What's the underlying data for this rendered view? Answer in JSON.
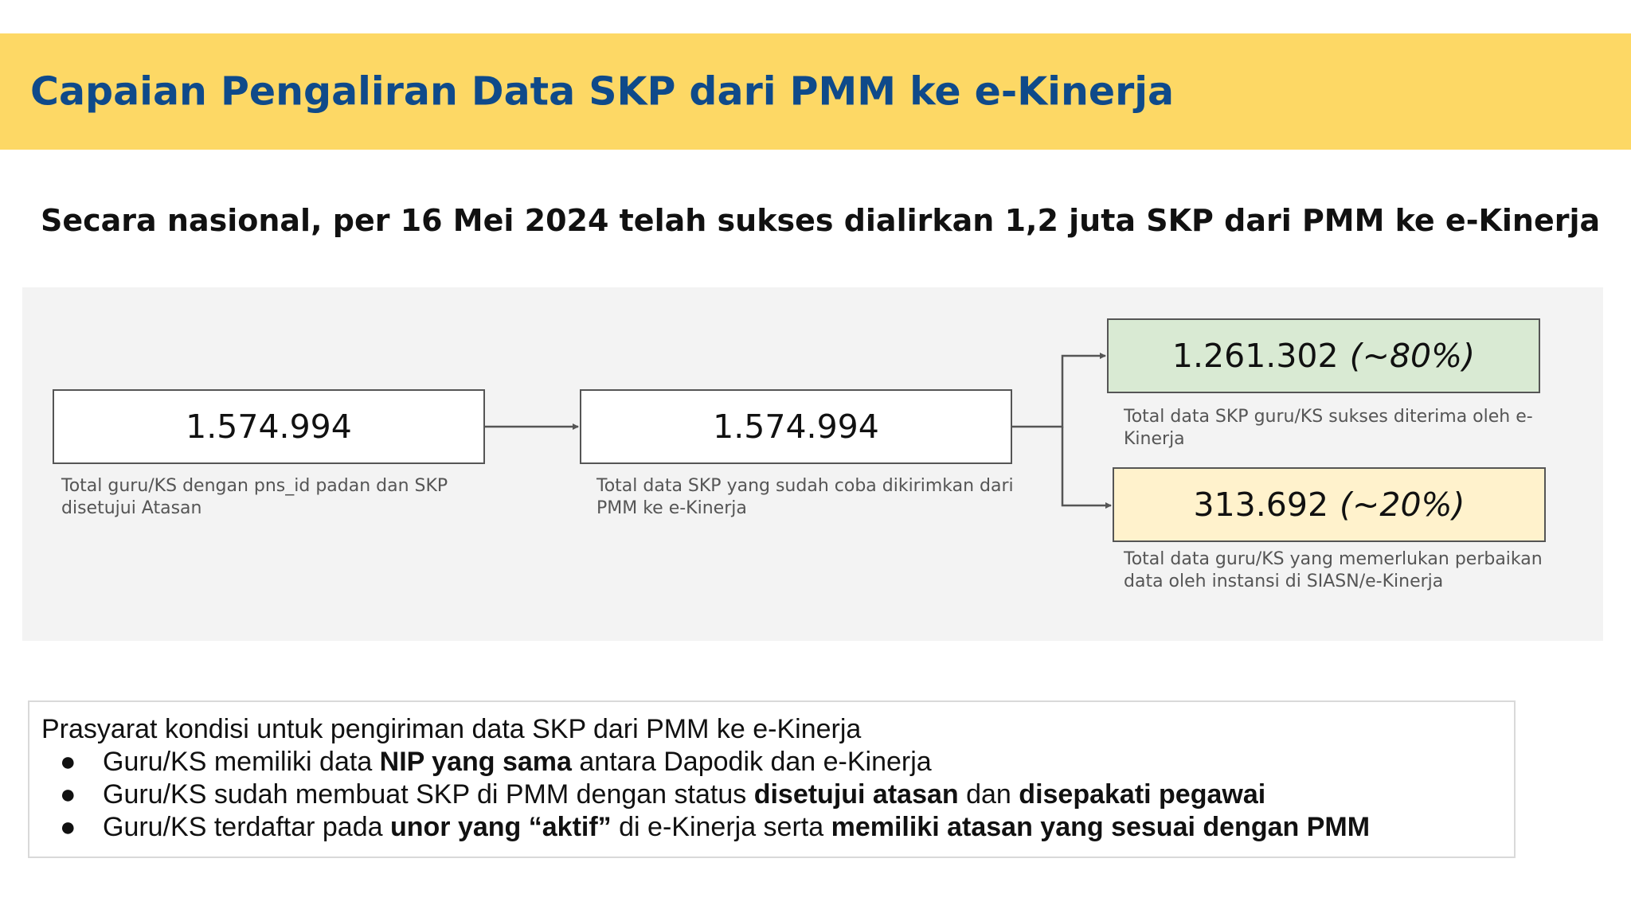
{
  "header": {
    "title": "Capaian Pengaliran Data SKP dari PMM ke e-Kinerja"
  },
  "headline": "Secara nasional, per 16 Mei 2024 telah sukses dialirkan 1,2 juta SKP dari PMM ke e-Kinerja",
  "flow": {
    "eligible": {
      "value": "1.574.994",
      "label": "Total guru/KS dengan pns_id padan dan SKP disetujui Atasan"
    },
    "sent": {
      "value": "1.574.994",
      "label": "Total data SKP yang sudah coba dikirimkan dari PMM ke e-Kinerja"
    },
    "success": {
      "value": "1.261.302",
      "percent": "(~80%)",
      "label": "Total data SKP guru/KS sukses diterima oleh e-Kinerja",
      "color": "#d9ead3"
    },
    "needs_fix": {
      "value": "313.692",
      "percent": "(~20%)",
      "label": "Total data guru/KS yang memerlukan perbaikan data oleh instansi di SIASN/e-Kinerja",
      "color": "#fff2cc"
    }
  },
  "prerequisites": {
    "title": "Prasyarat kondisi untuk pengiriman data SKP dari PMM ke e-Kinerja",
    "bullet": "●",
    "items": [
      {
        "t1": "Guru/KS memiliki data ",
        "b1": "NIP yang sama",
        "t2": " antara Dapodik dan e-Kinerja"
      },
      {
        "t1": "Guru/KS sudah membuat SKP di PMM dengan status ",
        "b1": "disetujui atasan",
        "t2": " dan ",
        "b2": "disepakati pegawai"
      },
      {
        "t1": "Guru/KS terdaftar pada ",
        "b1": "unor yang “aktif”",
        "t2": " di e-Kinerja serta ",
        "b2": "memiliki atasan yang sesuai dengan PMM"
      }
    ]
  },
  "colors": {
    "banner": "#fdd865",
    "title": "#0f4a8a",
    "panel": "#f3f3f3"
  }
}
